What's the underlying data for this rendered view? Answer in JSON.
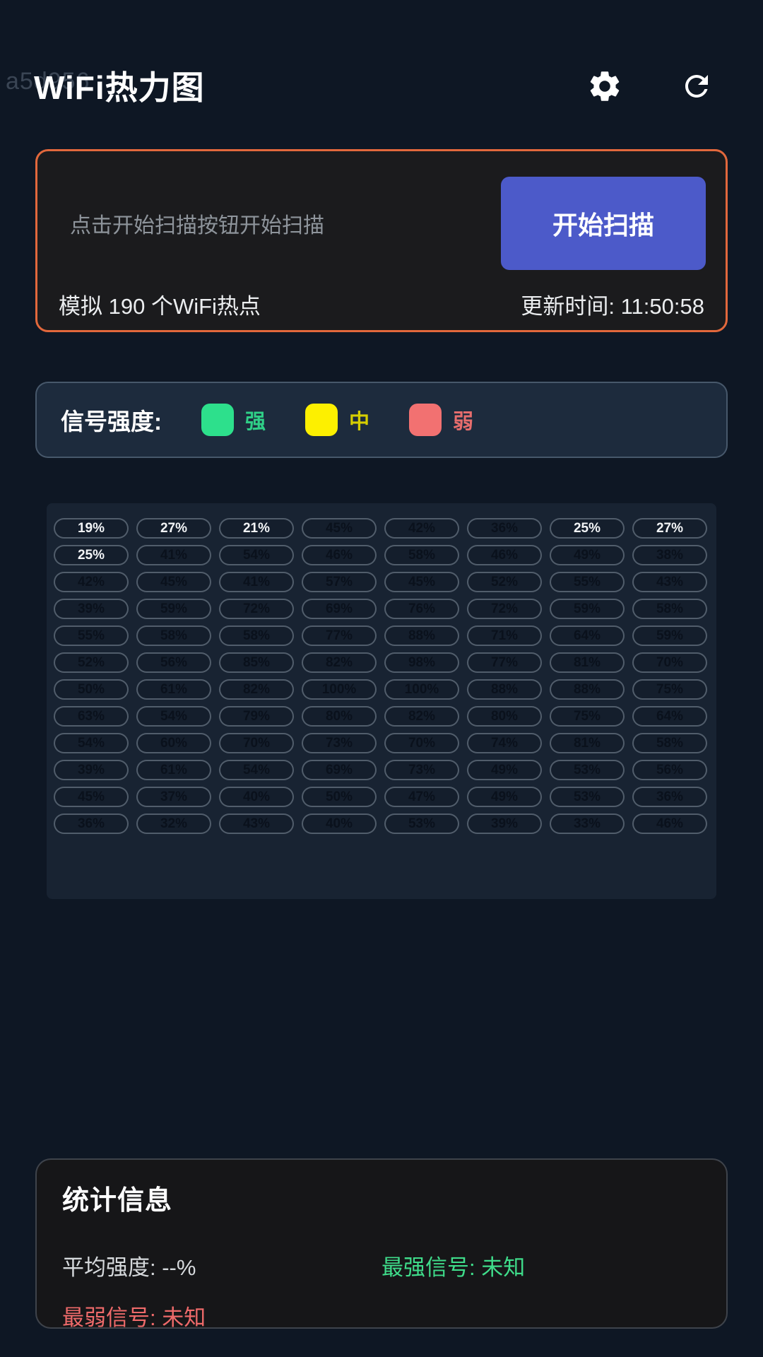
{
  "watermark": "a5d956",
  "header": {
    "title": "WiFi热力图"
  },
  "scan_card": {
    "placeholder": "点击开始扫描按钮开始扫描",
    "scan_button_label": "开始扫描",
    "hotspot_count_text": "模拟 190 个WiFi热点",
    "update_time_text": "更新时间: 11:50:58"
  },
  "legend": {
    "label": "信号强度:",
    "items": [
      {
        "label": "强",
        "color": "#2de08c",
        "label_color": "#2fcf87"
      },
      {
        "label": "中",
        "color": "#fdf000",
        "label_color": "#d6ce00"
      },
      {
        "label": "弱",
        "color": "#f27171",
        "label_color": "#e66d6d"
      }
    ]
  },
  "chart_data": {
    "type": "heatmap",
    "unit": "%",
    "rows": 12,
    "cols": 8,
    "low_value_white_text_below": 30,
    "values": [
      [
        19,
        27,
        21,
        45,
        42,
        36,
        25,
        27
      ],
      [
        25,
        41,
        54,
        46,
        58,
        46,
        49,
        38
      ],
      [
        42,
        45,
        41,
        57,
        45,
        52,
        55,
        43
      ],
      [
        39,
        59,
        72,
        69,
        76,
        72,
        59,
        58
      ],
      [
        55,
        58,
        58,
        77,
        88,
        71,
        64,
        59
      ],
      [
        52,
        56,
        85,
        82,
        98,
        77,
        81,
        70
      ],
      [
        50,
        61,
        82,
        100,
        100,
        88,
        88,
        75
      ],
      [
        63,
        54,
        79,
        80,
        82,
        80,
        75,
        64
      ],
      [
        54,
        60,
        70,
        73,
        70,
        74,
        81,
        58
      ],
      [
        39,
        61,
        54,
        69,
        73,
        49,
        53,
        56
      ],
      [
        45,
        37,
        40,
        50,
        47,
        49,
        53,
        36
      ],
      [
        36,
        32,
        43,
        40,
        53,
        39,
        33,
        46
      ]
    ]
  },
  "stats": {
    "title": "统计信息",
    "average": "平均强度: --%",
    "strongest": "最强信号: 未知",
    "weakest": "最弱信号: 未知"
  },
  "colors": {
    "accent_border": "#e2683c",
    "scan_button": "#4c5ac9",
    "stats_strongest": "#3fdc8a",
    "stats_weakest": "#ee6a6a"
  }
}
